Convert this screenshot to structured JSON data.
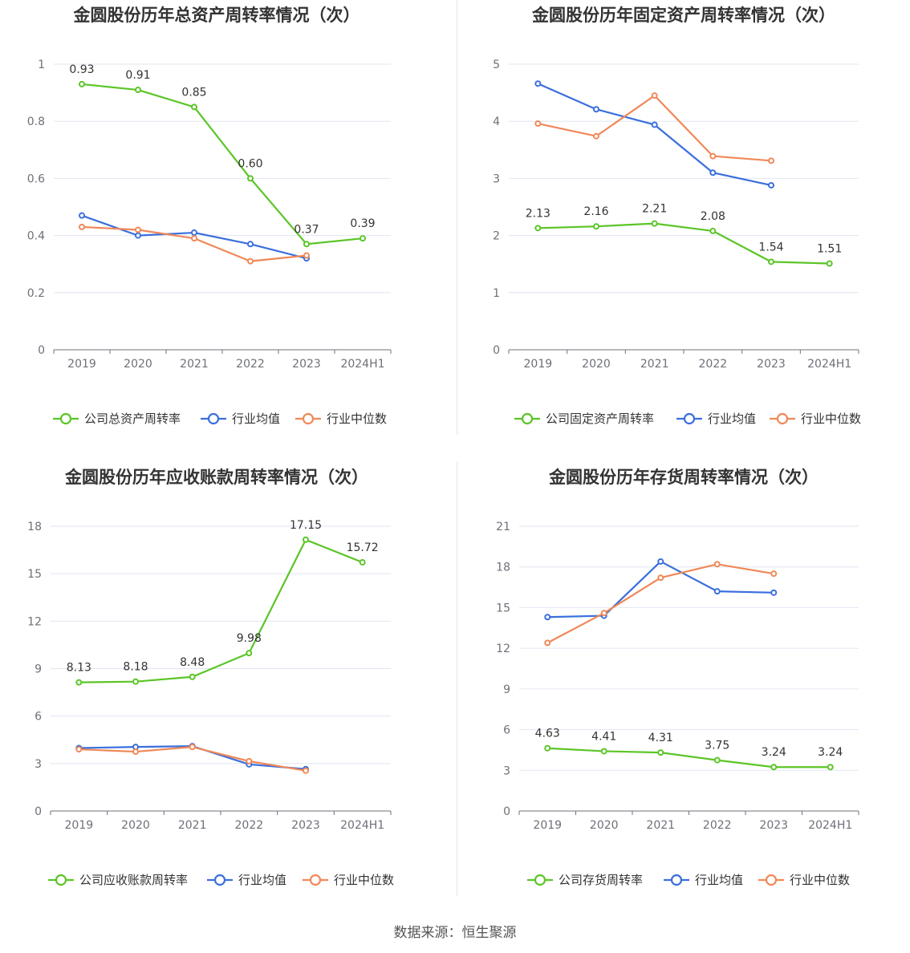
{
  "source": "数据来源：恒生聚源",
  "colors": {
    "company": "#5bc527",
    "industry_avg": "#3a6fdc",
    "industry_median": "#f08858"
  },
  "chart_data": [
    {
      "type": "line",
      "title": "金圆股份历年总资产周转率情况（次）",
      "categories": [
        "2019",
        "2020",
        "2021",
        "2022",
        "2023",
        "2024H1"
      ],
      "ylim": [
        0,
        1
      ],
      "yticks": [
        "0",
        "0.2",
        "0.4",
        "0.6",
        "0.8",
        "1"
      ],
      "ytick_values": [
        0,
        0.2,
        0.4,
        0.6,
        0.8,
        1
      ],
      "grid": true,
      "legend_position": "bottom",
      "series": [
        {
          "name": "公司总资产周转率",
          "color": "#5bc527",
          "values": [
            0.93,
            0.91,
            0.85,
            0.6,
            0.37,
            0.39
          ],
          "labels": [
            "0.93",
            "0.91",
            "0.85",
            "0.60",
            "0.37",
            "0.39"
          ]
        },
        {
          "name": "行业均值",
          "color": "#3a6fdc",
          "values": [
            0.47,
            0.4,
            0.41,
            0.37,
            0.32,
            null
          ]
        },
        {
          "name": "行业中位数",
          "color": "#f08858",
          "values": [
            0.43,
            0.42,
            0.39,
            0.31,
            0.33,
            null
          ]
        }
      ]
    },
    {
      "type": "line",
      "title": "金圆股份历年固定资产周转率情况（次）",
      "categories": [
        "2019",
        "2020",
        "2021",
        "2022",
        "2023",
        "2024H1"
      ],
      "ylim": [
        0,
        5
      ],
      "yticks": [
        "0",
        "1",
        "2",
        "3",
        "4",
        "5"
      ],
      "ytick_values": [
        0,
        1,
        2,
        3,
        4,
        5
      ],
      "grid": true,
      "legend_position": "bottom",
      "series": [
        {
          "name": "公司固定资产周转率",
          "color": "#5bc527",
          "values": [
            2.13,
            2.16,
            2.21,
            2.08,
            1.54,
            1.51
          ],
          "labels": [
            "2.13",
            "2.16",
            "2.21",
            "2.08",
            "1.54",
            "1.51"
          ]
        },
        {
          "name": "行业均值",
          "color": "#3a6fdc",
          "values": [
            4.66,
            4.21,
            3.94,
            3.1,
            2.88,
            null
          ]
        },
        {
          "name": "行业中位数",
          "color": "#f08858",
          "values": [
            3.96,
            3.74,
            4.45,
            3.39,
            3.31,
            null
          ]
        }
      ]
    },
    {
      "type": "line",
      "title": "金圆股份历年应收账款周转率情况（次）",
      "categories": [
        "2019",
        "2020",
        "2021",
        "2022",
        "2023",
        "2024H1"
      ],
      "ylim": [
        0,
        18
      ],
      "yticks": [
        "0",
        "3",
        "6",
        "9",
        "12",
        "15",
        "18"
      ],
      "ytick_values": [
        0,
        3,
        6,
        9,
        12,
        15,
        18
      ],
      "grid": true,
      "legend_position": "bottom",
      "series": [
        {
          "name": "公司应收账款周转率",
          "color": "#5bc527",
          "values": [
            8.13,
            8.18,
            8.48,
            9.98,
            17.15,
            15.72
          ],
          "labels": [
            "8.13",
            "8.18",
            "8.48",
            "9.98",
            "17.15",
            "15.72"
          ]
        },
        {
          "name": "行业均值",
          "color": "#3a6fdc",
          "values": [
            3.98,
            4.05,
            4.1,
            2.95,
            2.65,
            null
          ]
        },
        {
          "name": "行业中位数",
          "color": "#f08858",
          "values": [
            3.9,
            3.75,
            4.05,
            3.15,
            2.55,
            null
          ]
        }
      ]
    },
    {
      "type": "line",
      "title": "金圆股份历年存货周转率情况（次）",
      "categories": [
        "2019",
        "2020",
        "2021",
        "2022",
        "2023",
        "2024H1"
      ],
      "ylim": [
        0,
        21
      ],
      "yticks": [
        "0",
        "3",
        "6",
        "9",
        "12",
        "15",
        "18",
        "21"
      ],
      "ytick_values": [
        0,
        3,
        6,
        9,
        12,
        15,
        18,
        21
      ],
      "grid": true,
      "legend_position": "bottom",
      "series": [
        {
          "name": "公司存货周转率",
          "color": "#5bc527",
          "values": [
            4.63,
            4.41,
            4.31,
            3.75,
            3.24,
            3.24
          ],
          "labels": [
            "4.63",
            "4.41",
            "4.31",
            "3.75",
            "3.24",
            "3.24"
          ]
        },
        {
          "name": "行业均值",
          "color": "#3a6fdc",
          "values": [
            14.3,
            14.4,
            18.4,
            16.2,
            16.1,
            null
          ]
        },
        {
          "name": "行业中位数",
          "color": "#f08858",
          "values": [
            12.4,
            14.6,
            17.2,
            18.2,
            17.5,
            null
          ]
        }
      ]
    }
  ]
}
